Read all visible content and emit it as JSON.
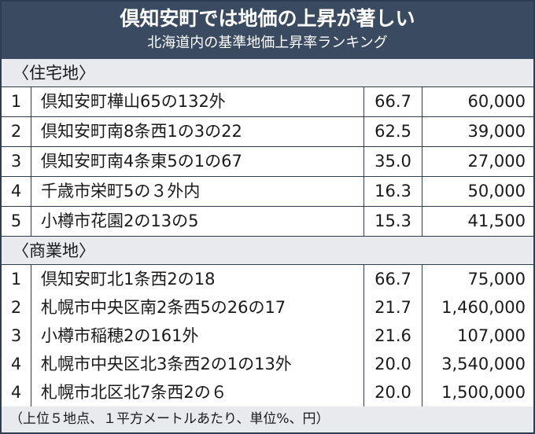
{
  "header": {
    "title": "倶知安町では地価の上昇が著しい",
    "subtitle": "北海道内の基準地価上昇率ランキング"
  },
  "sections": [
    {
      "label": "〈住宅地〉",
      "rows": [
        {
          "rank": "1",
          "location": "倶知安町樺山65の132外",
          "rate": "66.7",
          "price": "60,000"
        },
        {
          "rank": "2",
          "location": "倶知安町南8条西1の3の22",
          "rate": "62.5",
          "price": "39,000"
        },
        {
          "rank": "3",
          "location": "倶知安町南4条東5の1の67",
          "rate": "35.0",
          "price": "27,000"
        },
        {
          "rank": "4",
          "location": "千歳市栄町5の３外内",
          "rate": "16.3",
          "price": "50,000"
        },
        {
          "rank": "5",
          "location": "小樽市花園2の13の5",
          "rate": "15.3",
          "price": "41,500"
        }
      ]
    },
    {
      "label": "〈商業地〉",
      "rows": [
        {
          "rank": "1",
          "location": "倶知安町北1条西2の18",
          "rate": "66.7",
          "price": "75,000"
        },
        {
          "rank": "2",
          "location": "札幌市中央区南2条西5の26の17",
          "rate": "21.7",
          "price": "1,460,000"
        },
        {
          "rank": "3",
          "location": "小樽市稲穂2の161外",
          "rate": "21.6",
          "price": "107,000"
        },
        {
          "rank": "4",
          "location": "札幌市中央区北3条西2の1の13外",
          "rate": "20.0",
          "price": "3,540,000"
        },
        {
          "rank": "4",
          "location": "札幌市北区北7条西2の６",
          "rate": "20.0",
          "price": "1,500,000"
        }
      ]
    }
  ],
  "footnote": "（上位５地点、１平方メートルあたり、単位%、円）",
  "colors": {
    "header_bg": "#3a4a60",
    "section_bg": "#e9eaee",
    "border": "#2f3d52"
  }
}
